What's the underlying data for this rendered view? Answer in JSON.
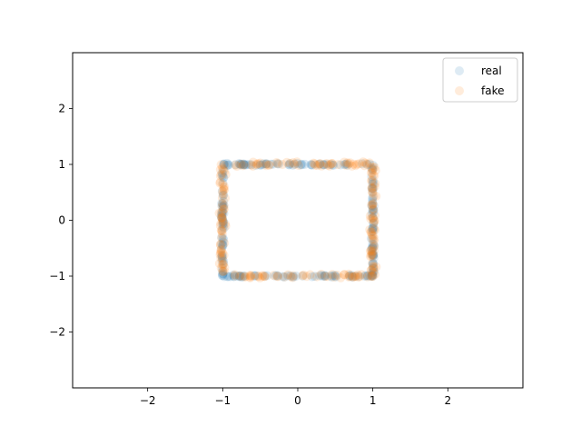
{
  "chart_data": {
    "type": "scatter",
    "title": "",
    "xlabel": "",
    "ylabel": "",
    "xlim": [
      -3,
      3
    ],
    "ylim": [
      -3,
      3
    ],
    "xticks": [
      -2,
      -1,
      0,
      1,
      2
    ],
    "yticks": [
      -2,
      -1,
      0,
      1,
      2
    ],
    "xtick_labels": [
      "−2",
      "−1",
      "0",
      "1",
      "2"
    ],
    "ytick_labels": [
      "−2",
      "−1",
      "0",
      "1",
      "2"
    ],
    "grid": false,
    "legend": {
      "placement": "top-right",
      "entries": [
        "real",
        "fake"
      ]
    },
    "series": [
      {
        "name": "real",
        "color": "#1f77b4",
        "alpha": 0.15,
        "shape": "square-perimeter",
        "x_range": [
          -1,
          1
        ],
        "y_range": [
          -1,
          1
        ],
        "point_count": 240
      },
      {
        "name": "fake",
        "color": "#ff7f0e",
        "alpha": 0.15,
        "shape": "square-perimeter",
        "x_range": [
          -1,
          1
        ],
        "y_range": [
          -1,
          1
        ],
        "point_count": 240
      }
    ]
  }
}
